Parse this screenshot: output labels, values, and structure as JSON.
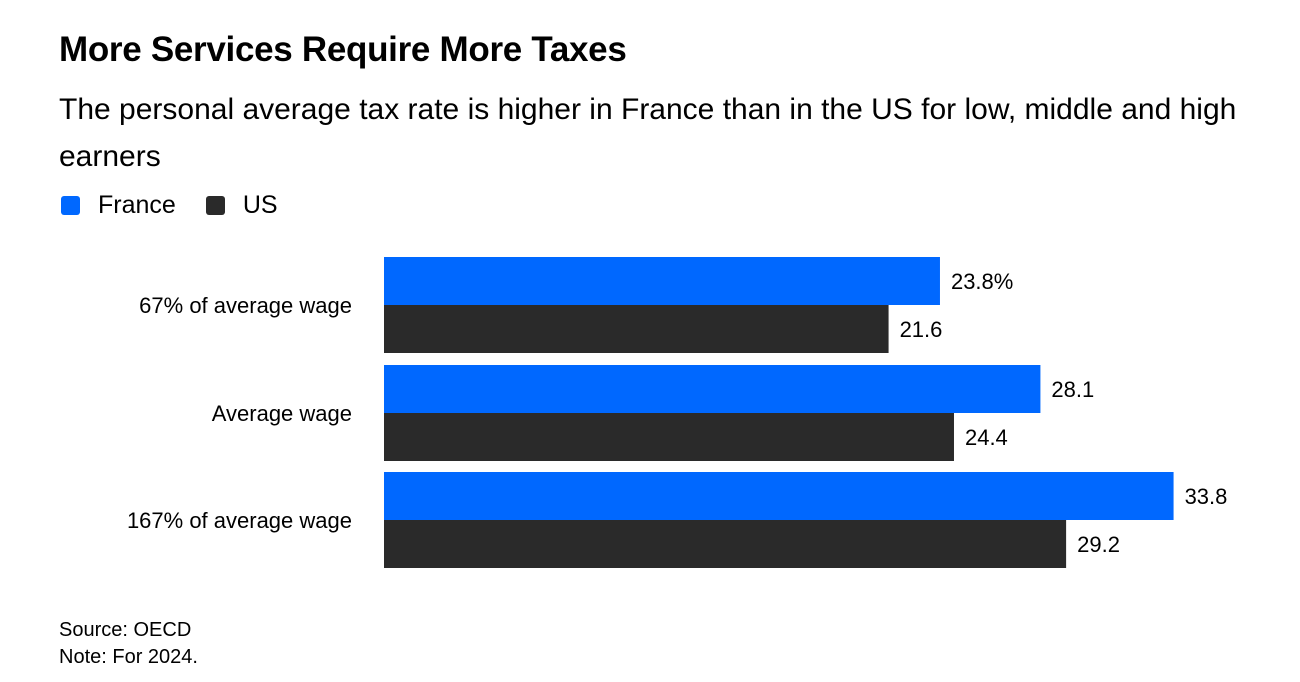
{
  "chart_data": {
    "type": "bar",
    "orientation": "horizontal",
    "title": "More Services Require More Taxes",
    "subtitle": "The personal average tax rate is higher in France than in the US for low, middle and high earners",
    "categories": [
      "67% of average wage",
      "Average wage",
      "167% of average wage"
    ],
    "series": [
      {
        "name": "France",
        "color": "#0068ff",
        "values": [
          23.8,
          28.1,
          33.8
        ],
        "labels": [
          "23.8%",
          "28.1",
          "33.8"
        ]
      },
      {
        "name": "US",
        "color": "#2a2a2a",
        "values": [
          21.6,
          24.4,
          29.2
        ],
        "labels": [
          "21.6",
          "24.4",
          "29.2"
        ]
      }
    ],
    "xlim": [
      0,
      39
    ],
    "grid": false,
    "legend": "top-left",
    "source": "Source: OECD",
    "note": "Note: For 2024."
  }
}
